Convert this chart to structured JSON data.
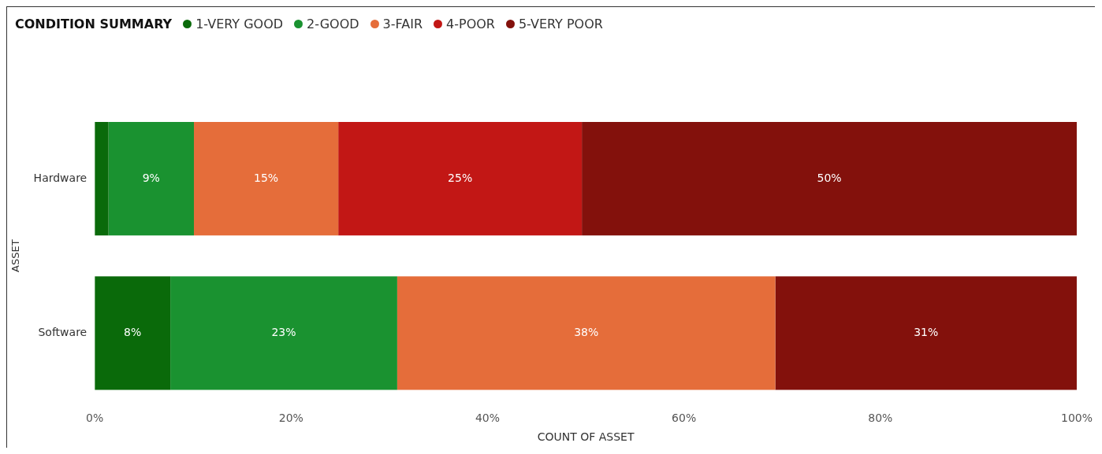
{
  "chart_data": {
    "type": "bar",
    "orientation": "horizontal",
    "stacked": true,
    "title": "CONDITION SUMMARY",
    "xlabel": "COUNT OF ASSET",
    "ylabel": "ASSET",
    "categories": [
      "Hardware",
      "Software"
    ],
    "series": [
      {
        "name": "1-VERY GOOD",
        "color": "#0a6a0a",
        "values": [
          1.4,
          7.7
        ],
        "value_labels": [
          null,
          "8%"
        ]
      },
      {
        "name": "2-GOOD",
        "color": "#1a9230",
        "values": [
          8.7,
          23.1
        ],
        "value_labels": [
          "9%",
          "23%"
        ]
      },
      {
        "name": "3-FAIR",
        "color": "#e56d3a",
        "values": [
          14.7,
          38.5
        ],
        "value_labels": [
          "15%",
          "38%"
        ]
      },
      {
        "name": "4-POOR",
        "color": "#c21715",
        "values": [
          24.8,
          null
        ],
        "value_labels": [
          "25%",
          null
        ]
      },
      {
        "name": "5-VERY POOR",
        "color": "#83110c",
        "values": [
          50.4,
          30.7
        ],
        "value_labels": [
          "50%",
          "31%"
        ]
      }
    ],
    "xlim": [
      0,
      100
    ],
    "xticks": [
      {
        "value": 0,
        "label": "0%"
      },
      {
        "value": 20,
        "label": "20%"
      },
      {
        "value": 40,
        "label": "40%"
      },
      {
        "value": 60,
        "label": "60%"
      },
      {
        "value": 80,
        "label": "80%"
      },
      {
        "value": 100,
        "label": "100%"
      }
    ],
    "grid": false,
    "legend": "top left"
  }
}
